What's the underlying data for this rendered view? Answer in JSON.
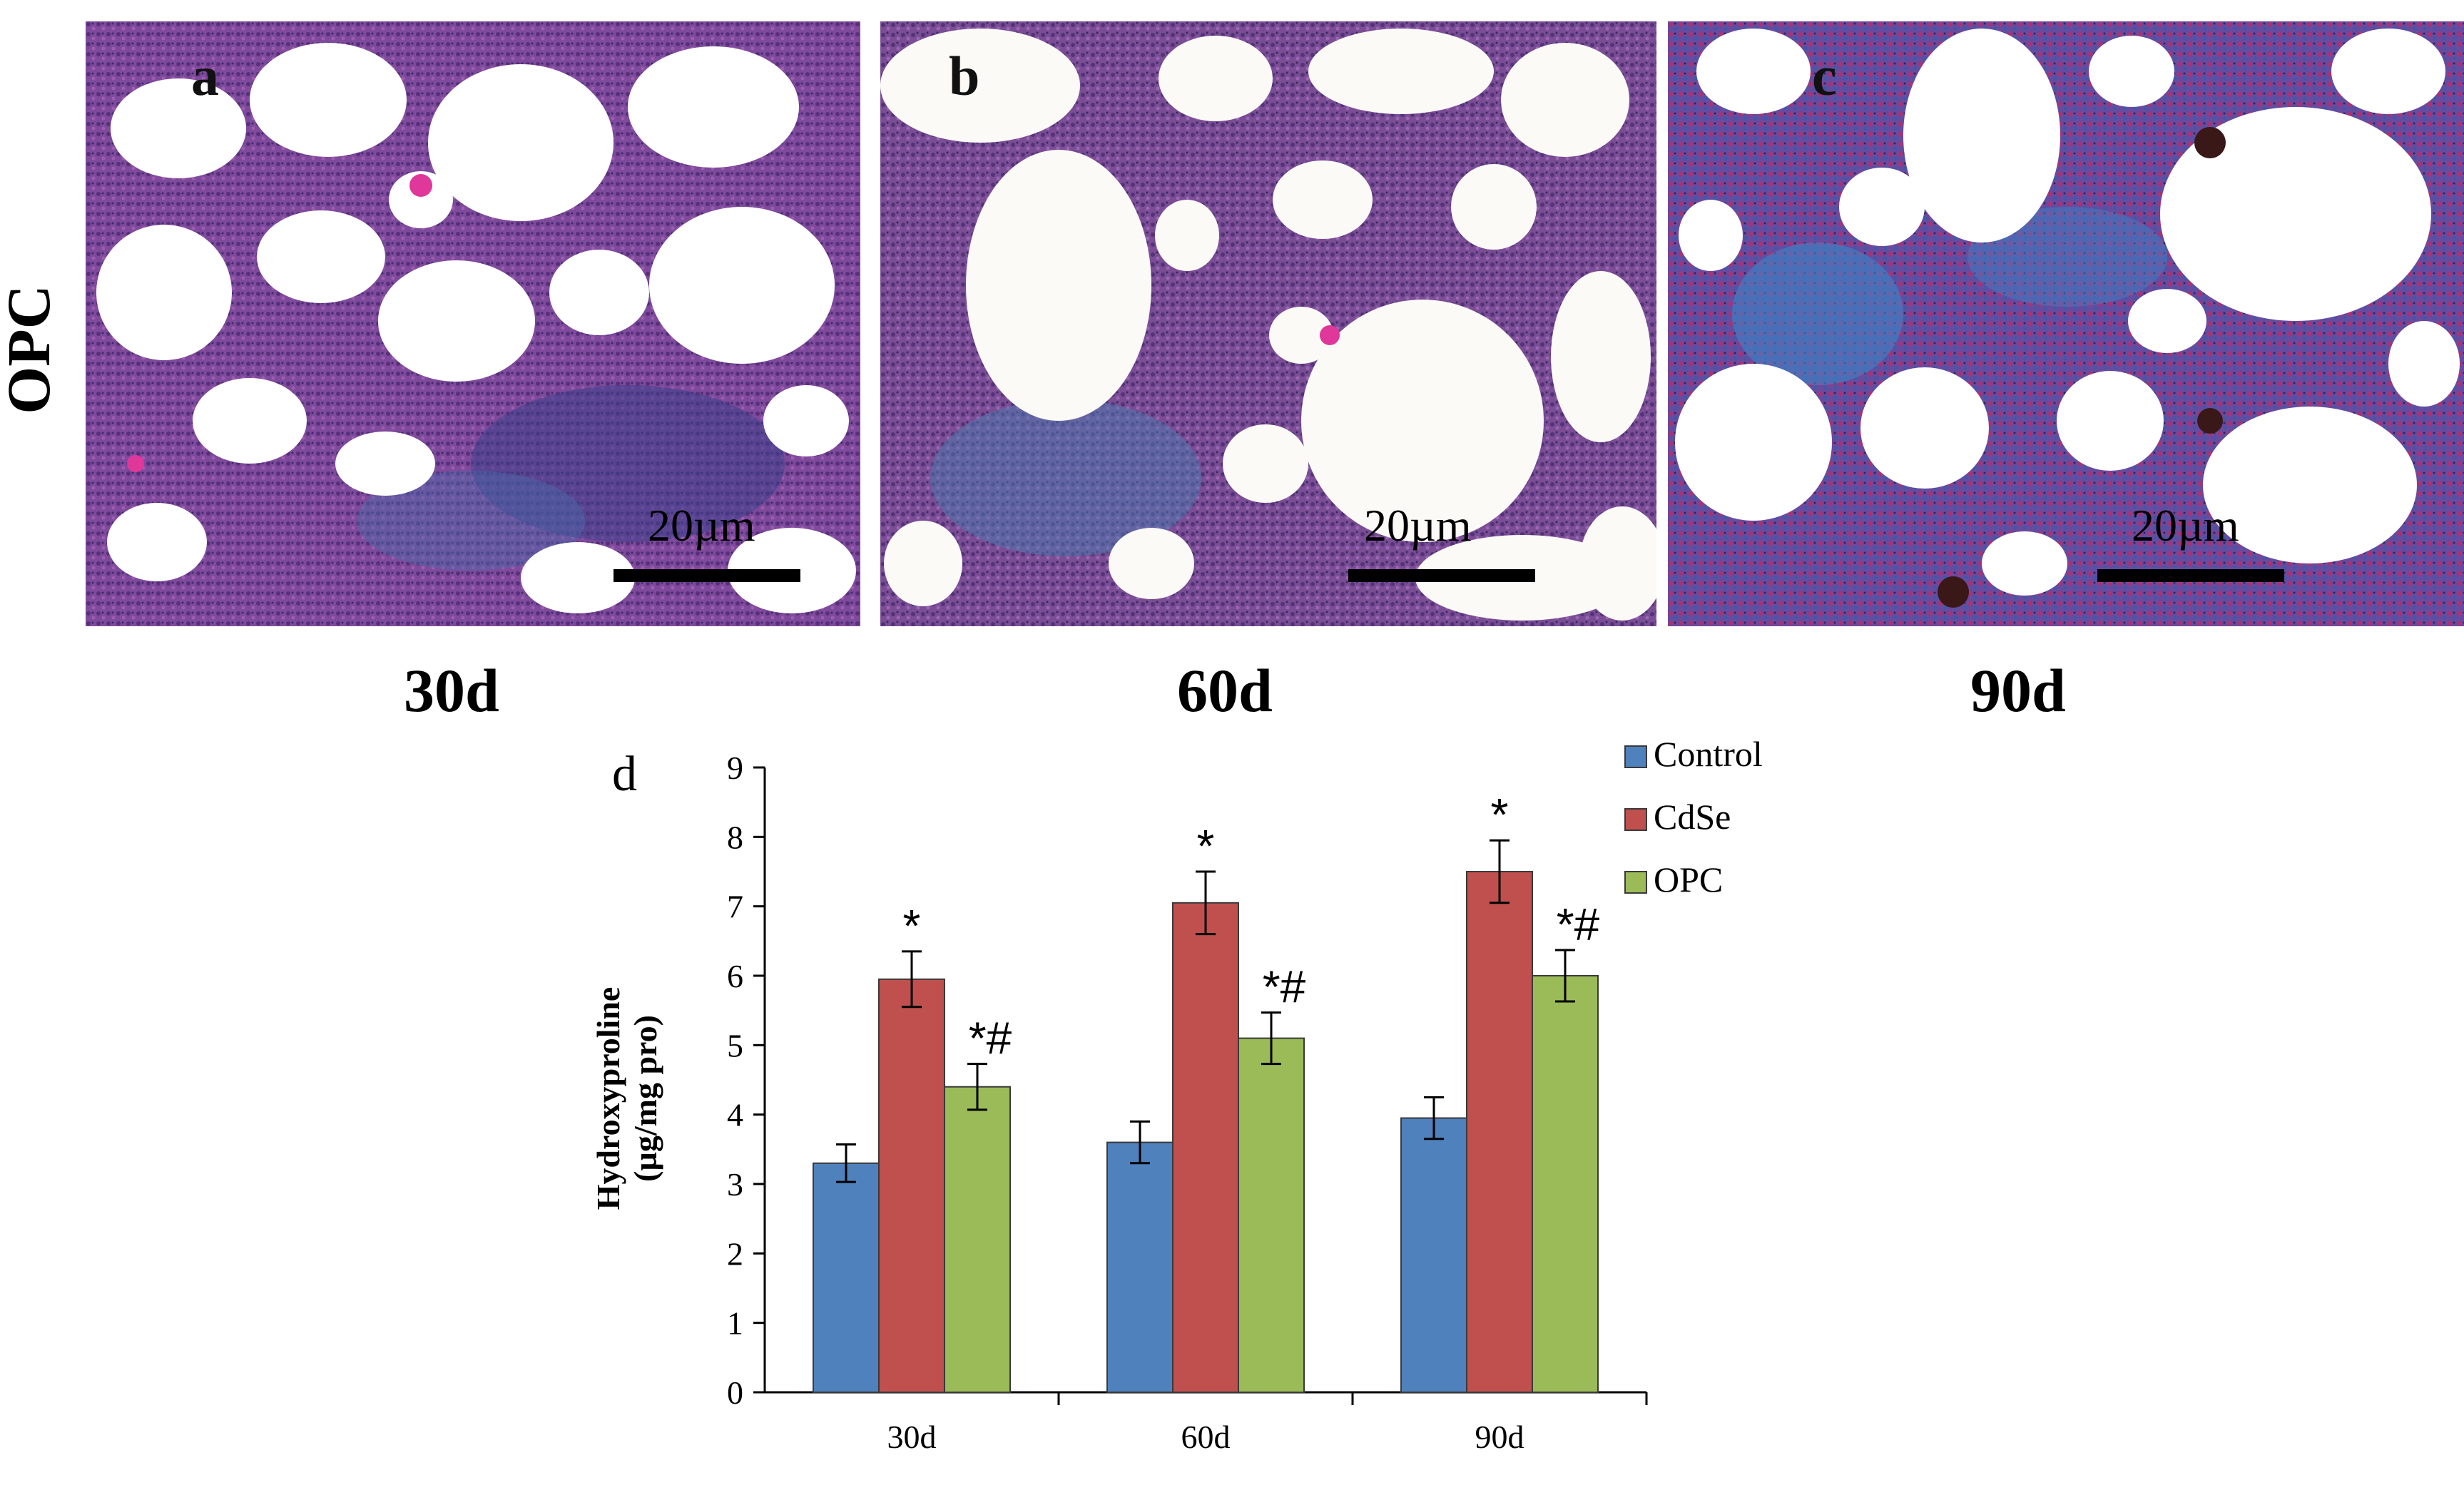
{
  "row_label": "OPC",
  "panels": [
    {
      "letter": "a",
      "scale": "20µm",
      "time": "30d"
    },
    {
      "letter": "b",
      "scale": "20µm",
      "time": "60d"
    },
    {
      "letter": "c",
      "scale": "20µm",
      "time": "90d"
    }
  ],
  "chart_panel_letter": "d",
  "chart_data": {
    "type": "bar",
    "categories": [
      "30d",
      "60d",
      "90d"
    ],
    "series": [
      {
        "name": "Control",
        "color": "#4f81bd",
        "values": [
          3.3,
          3.6,
          3.95
        ],
        "errors": [
          0.27,
          0.3,
          0.3
        ],
        "marks": [
          "",
          "",
          ""
        ]
      },
      {
        "name": "CdSe",
        "color": "#c0504d",
        "values": [
          5.95,
          7.05,
          7.5
        ],
        "errors": [
          0.4,
          0.45,
          0.45
        ],
        "marks": [
          "*",
          "*",
          "*"
        ]
      },
      {
        "name": "OPC",
        "color": "#9bbb59",
        "values": [
          4.4,
          5.1,
          6.0
        ],
        "errors": [
          0.33,
          0.37,
          0.37
        ],
        "marks": [
          "*#",
          "*#",
          "*#"
        ]
      }
    ],
    "ylabel": "Hydroxyproline",
    "ylabel2": "(µg/mg pro)",
    "ylim": [
      0,
      9
    ],
    "yticks": [
      0,
      1,
      2,
      3,
      4,
      5,
      6,
      7,
      8,
      9
    ],
    "legend_position": "top-right",
    "grid": false
  }
}
